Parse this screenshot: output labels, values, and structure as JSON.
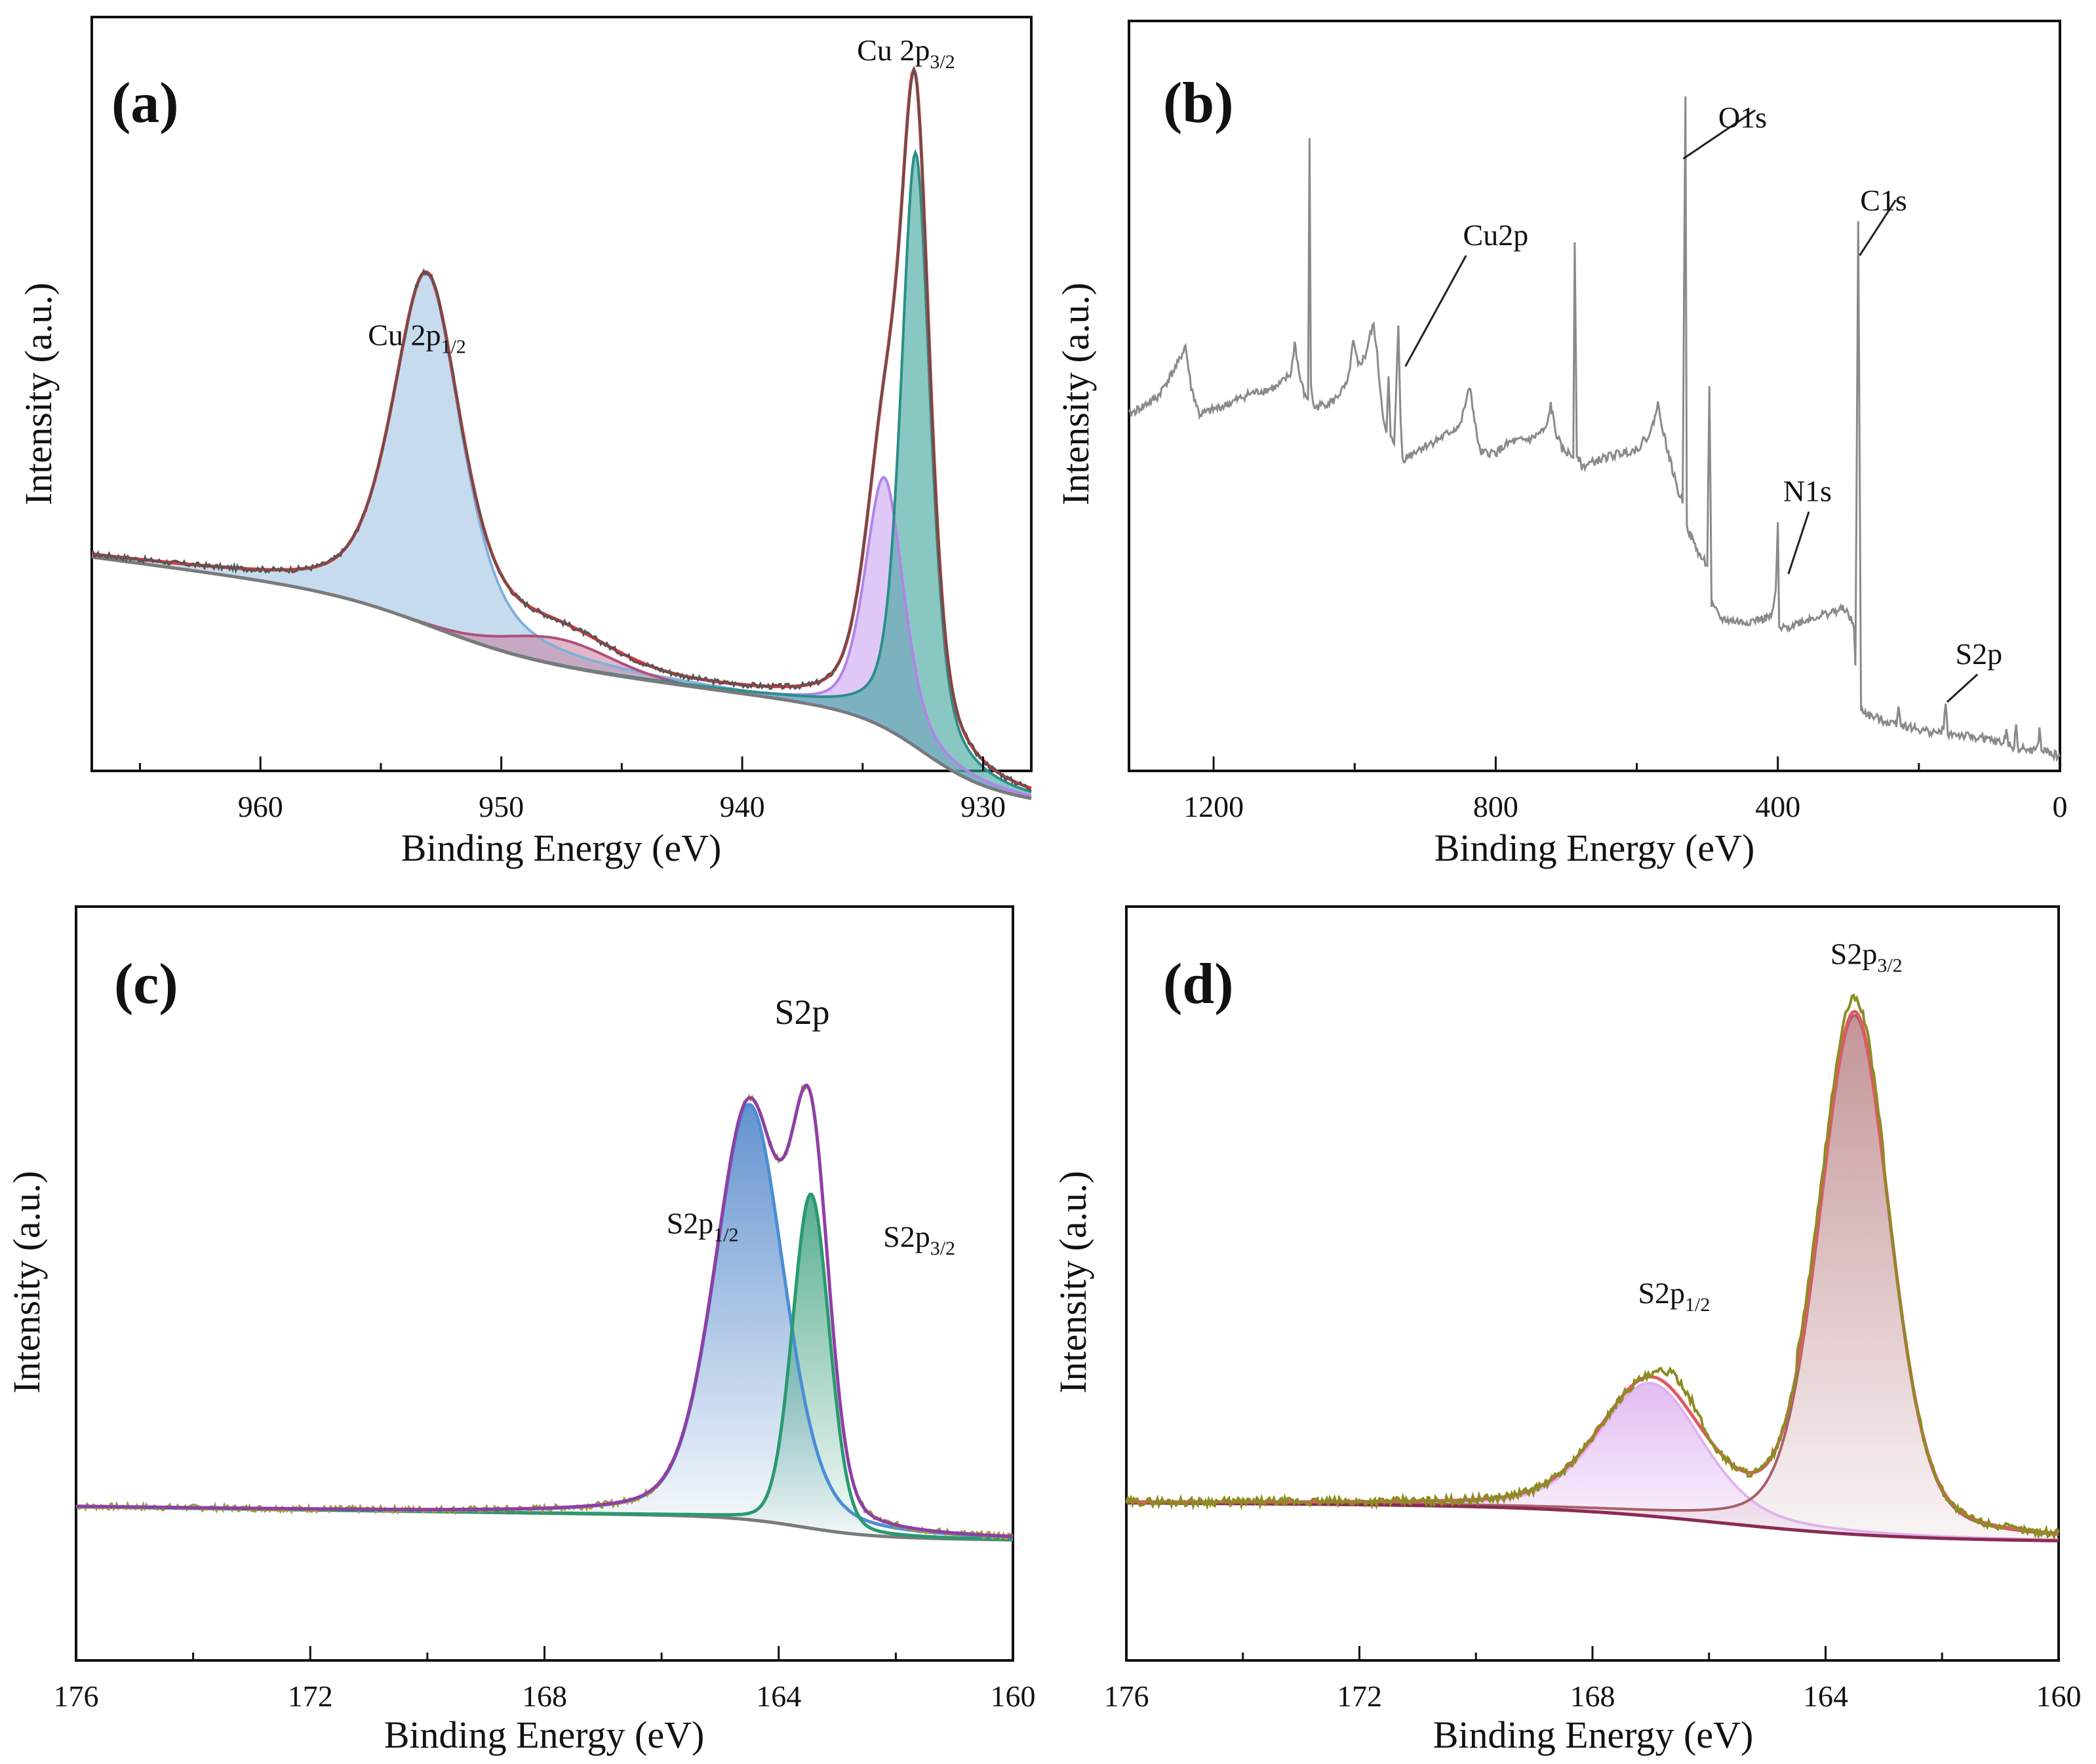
{
  "figure": {
    "panels": [
      "a",
      "b",
      "c",
      "d"
    ],
    "colors": {
      "axes": "#111111",
      "background_line": "#7a7a7a",
      "a_envelope": "#e03434",
      "a_raw": "#555555",
      "a_cu2p12_fill": "#a9c8e6",
      "a_cu2p12_line": "#7fb0dc",
      "a_satellite_fill": "#c77d9c",
      "a_satellite_line": "#b0507b",
      "a_cu2p32_fill": "#3aa29a",
      "a_cu2p32_line": "#2a8f88",
      "a_violet_fill": "#c59bf2",
      "a_violet_line": "#b184e8",
      "b_survey": "#8a8a8a",
      "c_envelope": "#8e3fa5",
      "c_raw": "#a59a3d",
      "c_blue_fill": "#2f6fbf",
      "c_blue_line": "#4a8ed4",
      "c_green_fill": "#2f9a74",
      "c_green_line": "#2a9a6e",
      "c_baseline": "#7a7a7a",
      "d_raw": "#8c8c22",
      "d_envelope": "#e05a64",
      "d_brown_fill": "#b57a7e",
      "d_brown_line": "#a8606a",
      "d_violet_fill": "#dcb0f0",
      "d_violet_line": "#e0b2ec",
      "d_baseline": "#8a2b54"
    }
  },
  "chart_data": [
    {
      "panel": "a",
      "panel_label": "(a)",
      "type": "line",
      "title": "",
      "xlabel": "Binding Energy (eV)",
      "ylabel": "Intensity (a.u.)",
      "xlim": [
        967,
        928
      ],
      "x_reversed": true,
      "x_ticks": [
        960,
        950,
        940,
        930
      ],
      "x_tick_labels": [
        "960",
        "950",
        "940",
        "930"
      ],
      "x_minor_step": 5,
      "ylim": [
        0,
        1
      ],
      "background": {
        "type": "shirley",
        "start": 967,
        "end": 928,
        "level_start": 0.255,
        "level_end": 0.072,
        "slope_start": -0.0045,
        "step_center": 952.8,
        "step_width": 2.2,
        "step_height": 0.075,
        "step2_center": 932.5,
        "step2_width": 1.3,
        "step2_height": 0.1
      },
      "components": [
        {
          "name": "Cu 2p1/2",
          "center": 953.1,
          "height": 0.505,
          "width": 1.7,
          "eta": 0.55
        },
        {
          "name": "satellite",
          "center": 947.6,
          "height": 0.038,
          "width": 2.6,
          "eta": 0.0
        },
        {
          "name": "Cu 2p3/2 (violet)",
          "center": 934.1,
          "height": 0.36,
          "width": 0.95,
          "eta": 0.45
        },
        {
          "name": "Cu 2p3/2 (teal)",
          "center": 932.8,
          "height": 0.855,
          "width": 0.72,
          "eta": 0.5
        }
      ],
      "peak_labels": [
        {
          "text": "Cu 2p",
          "sub": "1/2",
          "x": 953.5,
          "y": 0.56
        },
        {
          "text": "Cu 2p",
          "sub": "3/2",
          "x": 933.2,
          "y": 0.97
        }
      ]
    },
    {
      "panel": "b",
      "panel_label": "(b)",
      "type": "line",
      "title": "",
      "xlabel": "Binding Energy (eV)",
      "ylabel": "Intensity (a.u.)",
      "xlim": [
        1320,
        0
      ],
      "x_reversed": true,
      "x_ticks": [
        1200,
        800,
        400,
        0
      ],
      "x_tick_labels": [
        "1200",
        "800",
        "400",
        "0"
      ],
      "x_minor_step": 200,
      "ylim": [
        0,
        1
      ],
      "survey_points": [
        [
          1320,
          0.505
        ],
        [
          1280,
          0.53
        ],
        [
          1250,
          0.58
        ],
        [
          1240,
          0.605
        ],
        [
          1232,
          0.545
        ],
        [
          1220,
          0.505
        ],
        [
          1180,
          0.52
        ],
        [
          1150,
          0.535
        ],
        [
          1110,
          0.545
        ],
        [
          1090,
          0.565
        ],
        [
          1085,
          0.61
        ],
        [
          1078,
          0.56
        ],
        [
          1070,
          0.53
        ],
        [
          1066,
          0.53
        ],
        [
          1064,
          0.9
        ],
        [
          1062,
          0.55
        ],
        [
          1058,
          0.515
        ],
        [
          1030,
          0.525
        ],
        [
          1010,
          0.55
        ],
        [
          1002,
          0.61
        ],
        [
          995,
          0.575
        ],
        [
          985,
          0.59
        ],
        [
          978,
          0.62
        ],
        [
          973,
          0.635
        ],
        [
          968,
          0.59
        ],
        [
          964,
          0.545
        ],
        [
          958,
          0.49
        ],
        [
          955,
          0.475
        ],
        [
          952,
          0.56
        ],
        [
          949,
          0.47
        ],
        [
          944,
          0.465
        ],
        [
          941,
          0.55
        ],
        [
          938,
          0.63
        ],
        [
          935,
          0.5
        ],
        [
          932,
          0.44
        ],
        [
          910,
          0.455
        ],
        [
          880,
          0.47
        ],
        [
          850,
          0.49
        ],
        [
          842,
          0.525
        ],
        [
          836,
          0.545
        ],
        [
          830,
          0.495
        ],
        [
          822,
          0.45
        ],
        [
          800,
          0.45
        ],
        [
          780,
          0.465
        ],
        [
          750,
          0.47
        ],
        [
          728,
          0.485
        ],
        [
          722,
          0.52
        ],
        [
          715,
          0.48
        ],
        [
          706,
          0.455
        ],
        [
          690,
          0.445
        ],
        [
          688,
          0.76
        ],
        [
          685,
          0.45
        ],
        [
          678,
          0.43
        ],
        [
          640,
          0.445
        ],
        [
          600,
          0.455
        ],
        [
          580,
          0.48
        ],
        [
          570,
          0.52
        ],
        [
          565,
          0.495
        ],
        [
          558,
          0.46
        ],
        [
          548,
          0.42
        ],
        [
          540,
          0.39
        ],
        [
          535,
          0.38
        ],
        [
          531,
          0.97
        ],
        [
          529,
          0.35
        ],
        [
          526,
          0.335
        ],
        [
          510,
          0.3
        ],
        [
          500,
          0.29
        ],
        [
          497,
          0.55
        ],
        [
          494,
          0.23
        ],
        [
          480,
          0.21
        ],
        [
          450,
          0.205
        ],
        [
          420,
          0.21
        ],
        [
          408,
          0.215
        ],
        [
          403,
          0.25
        ],
        [
          400,
          0.345
        ],
        [
          398,
          0.195
        ],
        [
          395,
          0.195
        ],
        [
          370,
          0.205
        ],
        [
          340,
          0.215
        ],
        [
          305,
          0.225
        ],
        [
          292,
          0.2
        ],
        [
          290,
          0.14
        ],
        [
          286,
          0.78
        ],
        [
          282,
          0.08
        ],
        [
          270,
          0.07
        ],
        [
          240,
          0.06
        ],
        [
          232,
          0.06
        ],
        [
          229,
          0.085
        ],
        [
          225,
          0.057
        ],
        [
          200,
          0.05
        ],
        [
          170,
          0.045
        ],
        [
          165,
          0.055
        ],
        [
          162,
          0.085
        ],
        [
          159,
          0.045
        ],
        [
          130,
          0.04
        ],
        [
          110,
          0.038
        ],
        [
          100,
          0.035
        ],
        [
          80,
          0.03
        ],
        [
          76,
          0.05
        ],
        [
          73,
          0.028
        ],
        [
          65,
          0.025
        ],
        [
          62,
          0.06
        ],
        [
          60,
          0.023
        ],
        [
          40,
          0.02
        ],
        [
          32,
          0.022
        ],
        [
          29,
          0.05
        ],
        [
          26,
          0.02
        ],
        [
          10,
          0.015
        ],
        [
          0,
          0.01
        ]
      ],
      "peak_labels": [
        {
          "text": "O1s",
          "x": 450,
          "y": 0.92
        },
        {
          "text": "Cu2p",
          "x": 800,
          "y": 0.75
        },
        {
          "text": "C1s",
          "x": 250,
          "y": 0.8
        },
        {
          "text": "N1s",
          "x": 358,
          "y": 0.38
        },
        {
          "text": "S2p",
          "x": 115,
          "y": 0.145
        }
      ],
      "leader_lines": [
        [
          [
            534,
            0.875
          ],
          [
            432,
            0.945
          ]
        ],
        [
          [
            928,
            0.575
          ],
          [
            842,
            0.735
          ]
        ],
        [
          [
            284,
            0.735
          ],
          [
            233,
            0.815
          ]
        ],
        [
          [
            385,
            0.275
          ],
          [
            356,
            0.365
          ]
        ],
        [
          [
            160,
            0.09
          ],
          [
            117,
            0.13
          ]
        ]
      ]
    },
    {
      "panel": "c",
      "panel_label": "(c)",
      "type": "line",
      "title": "",
      "xlabel": "Binding Energy (eV)",
      "ylabel": "Intensity (a.u.)",
      "xlim": [
        176,
        160
      ],
      "x_reversed": true,
      "x_ticks": [
        176,
        172,
        168,
        164,
        160
      ],
      "x_tick_labels": [
        "176",
        "172",
        "168",
        "164",
        "160"
      ],
      "x_minor_step": 2,
      "ylim": [
        0,
        1
      ],
      "background": {
        "level_start": 0.215,
        "level_end": 0.135,
        "slope_start": -0.0012,
        "step_center": 163.6,
        "step_width": 0.6,
        "step_height": 0.03
      },
      "components": [
        {
          "name": "S2p1/2",
          "center": 164.5,
          "height": 0.615,
          "width": 0.7,
          "eta": 0.3
        },
        {
          "name": "S2p3/2",
          "center": 163.45,
          "height": 0.495,
          "width": 0.37,
          "eta": 0.15
        }
      ],
      "peak_labels": [
        {
          "text": "S2p",
          "sub": "",
          "x": 163.6,
          "y": 0.93
        },
        {
          "text": "S2p",
          "sub": "1/2",
          "x": 165.3,
          "y": 0.62
        },
        {
          "text": "S2p",
          "sub": "3/2",
          "x": 161.6,
          "y": 0.6
        }
      ]
    },
    {
      "panel": "d",
      "panel_label": "(d)",
      "type": "line",
      "title": "",
      "xlabel": "Binding Energy (eV)",
      "ylabel": "Intensity (a.u.)",
      "xlim": [
        176,
        160
      ],
      "x_reversed": true,
      "x_ticks": [
        176,
        172,
        168,
        164,
        160
      ],
      "x_tick_labels": [
        "176",
        "172",
        "168",
        "164",
        "160"
      ],
      "x_minor_step": 2,
      "ylim": [
        0,
        1
      ],
      "background": {
        "level_start": 0.16,
        "level_end": 0.1,
        "slope_start": -0.0005,
        "step_center": 165.8,
        "step_width": 1.5,
        "step_height": 0.05
      },
      "components": [
        {
          "name": "S2p1/2",
          "center": 167.0,
          "height": 0.2,
          "width": 1.05,
          "eta": 0.35
        },
        {
          "name": "S2p3/2",
          "center": 163.5,
          "height": 0.78,
          "width": 0.72,
          "eta": 0.3
        }
      ],
      "peak_labels": [
        {
          "text": "S2p",
          "sub": "3/2",
          "x": 163.3,
          "y": 0.97
        },
        {
          "text": "S2p",
          "sub": "1/2",
          "x": 166.6,
          "y": 0.46
        }
      ]
    }
  ]
}
